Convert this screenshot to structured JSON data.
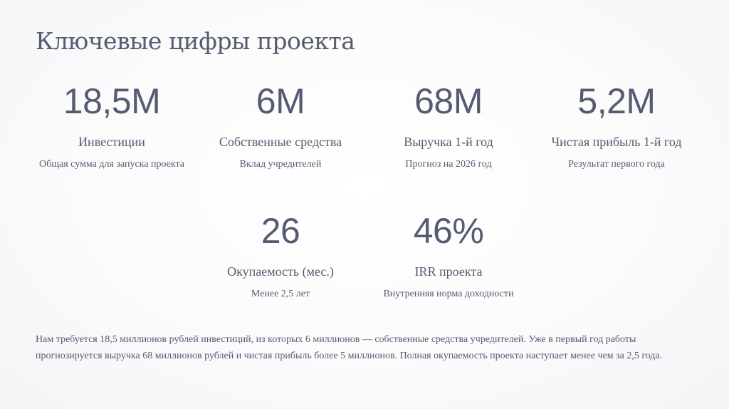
{
  "slide": {
    "title": "Ключевые цифры проекта",
    "metrics": [
      {
        "value": "18,5M",
        "label": "Инвестиции",
        "description": "Общая сумма для запуска проекта"
      },
      {
        "value": "6M",
        "label": "Собственные средства",
        "description": "Вклад учредителей"
      },
      {
        "value": "68M",
        "label": "Выручка 1-й год",
        "description": "Прогноз на 2026 год"
      },
      {
        "value": "5,2M",
        "label": "Чистая прибыль 1-й год",
        "description": "Результат первого года"
      },
      {
        "value": "26",
        "label": "Окупаемость (мес.)",
        "description": "Менее 2,5 лет"
      },
      {
        "value": "46%",
        "label": "IRR проекта",
        "description": "Внутренняя норма доходности"
      }
    ],
    "summary": "Нам требуется 18,5 миллионов рублей инвестиций, из которых 6 миллионов — собственные средства учредителей. Уже в первый год работы прогнозируется выручка 68 миллионов рублей и чистая прибыль более 5 миллионов. Полная окупаемость проекта наступает менее чем за 2,5 года."
  },
  "colors": {
    "text": "#555b70",
    "background": "#fbfbfc"
  }
}
